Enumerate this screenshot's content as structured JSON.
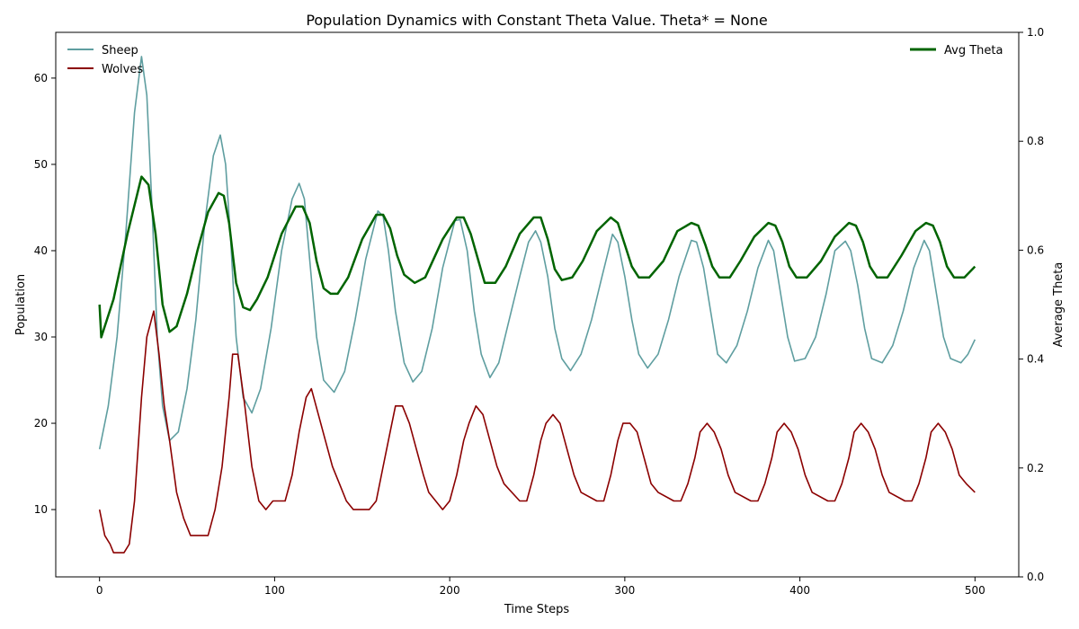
{
  "chart_data": {
    "type": "line",
    "title": "Population Dynamics with Constant Theta Value. Theta* = None",
    "xlabel": "Time Steps",
    "ylabel": "Population",
    "y2label": "Average Theta",
    "xlim": [
      -25,
      525
    ],
    "ylim": [
      2.2,
      65.3
    ],
    "y2lim": [
      0,
      1
    ],
    "xticks": [
      0,
      100,
      200,
      300,
      400,
      500
    ],
    "yticks": [
      10,
      20,
      30,
      40,
      50,
      60
    ],
    "y2ticks": [
      0.0,
      0.2,
      0.4,
      0.6,
      0.8,
      1.0
    ],
    "y2tick_labels": [
      "0.0",
      "0.2",
      "0.4",
      "0.6",
      "0.8",
      "1.0"
    ],
    "grid": false,
    "legend_left": "top-left",
    "legend_right": "top-right",
    "series": [
      {
        "name": "Sheep",
        "axis": "left",
        "color": "#5f9ea0",
        "x": [
          0,
          5,
          10,
          15,
          20,
          24,
          27,
          30,
          33,
          36,
          40,
          45,
          50,
          55,
          60,
          65,
          69,
          72,
          75,
          78,
          82,
          87,
          92,
          98,
          104,
          110,
          114,
          117,
          120,
          124,
          128,
          134,
          140,
          146,
          152,
          159,
          162,
          165,
          169,
          174,
          179,
          184,
          190,
          196,
          203,
          206,
          210,
          214,
          218,
          223,
          228,
          234,
          240,
          245,
          249,
          252,
          256,
          260,
          264,
          269,
          275,
          281,
          287,
          293,
          296,
          300,
          304,
          308,
          313,
          319,
          325,
          331,
          338,
          341,
          345,
          349,
          353,
          358,
          364,
          370,
          376,
          382,
          385,
          389,
          393,
          397,
          403,
          409,
          415,
          420,
          426,
          429,
          433,
          437,
          441,
          447,
          453,
          459,
          465,
          471,
          474,
          478,
          482,
          486,
          492,
          496,
          500
        ],
        "y": [
          17,
          22,
          30,
          42,
          56,
          62.5,
          58,
          45,
          30,
          22,
          18,
          19,
          24,
          32,
          43,
          51,
          53.4,
          50,
          41,
          30,
          23,
          21.2,
          24,
          31,
          40,
          46,
          47.8,
          46,
          39,
          30,
          25,
          23.6,
          26,
          32,
          39,
          44.6,
          44,
          40,
          33,
          27,
          24.8,
          26,
          31,
          38,
          43.5,
          43.6,
          40,
          33,
          28,
          25.3,
          27,
          32,
          37,
          41,
          42.3,
          41,
          37,
          31,
          27.5,
          26.1,
          28,
          32,
          37,
          41.9,
          41,
          37,
          32,
          28,
          26.4,
          28,
          32,
          37,
          41.2,
          41,
          38,
          33,
          28,
          27,
          29,
          33,
          38,
          41.2,
          40,
          35,
          30,
          27.2,
          27.5,
          30,
          35,
          40,
          41.1,
          40,
          36,
          31,
          27.5,
          27,
          29,
          33,
          38,
          41.2,
          40,
          35,
          30,
          27.5,
          27,
          28,
          29.7
        ]
      },
      {
        "name": "Wolves",
        "axis": "left",
        "color": "#8b0000",
        "x": [
          0,
          3,
          6,
          8,
          14,
          17,
          20,
          24,
          27,
          31,
          34,
          37,
          40,
          44,
          48,
          52,
          58,
          62,
          66,
          70,
          74,
          76,
          79,
          83,
          87,
          91,
          95,
          99,
          106,
          110,
          114,
          118,
          121,
          125,
          129,
          133,
          137,
          141,
          145,
          148,
          154,
          158,
          162,
          166,
          169,
          173,
          177,
          181,
          185,
          188,
          196,
          200,
          204,
          208,
          211,
          215,
          219,
          223,
          227,
          231,
          240,
          244,
          248,
          252,
          255,
          259,
          263,
          267,
          271,
          275,
          284,
          288,
          292,
          296,
          299,
          303,
          307,
          311,
          315,
          319,
          328,
          332,
          336,
          340,
          343,
          347,
          351,
          355,
          359,
          363,
          372,
          376,
          380,
          384,
          387,
          391,
          395,
          399,
          403,
          407,
          416,
          420,
          424,
          428,
          431,
          435,
          439,
          443,
          447,
          451,
          460,
          464,
          468,
          472,
          475,
          479,
          483,
          487,
          491,
          495,
          500
        ],
        "y": [
          10,
          7,
          6,
          5,
          5,
          6,
          11,
          23,
          30,
          33,
          28,
          22,
          18,
          12,
          9,
          7,
          7,
          7,
          10,
          15,
          23,
          28,
          28,
          22,
          15,
          11,
          10,
          11,
          11,
          14,
          19,
          23,
          24,
          21,
          18,
          15,
          13,
          11,
          10,
          10,
          10,
          11,
          15,
          19,
          22,
          22,
          20,
          17,
          14,
          12,
          10,
          11,
          14,
          18,
          20,
          22,
          21,
          18,
          15,
          13,
          11,
          11,
          14,
          18,
          20,
          21,
          20,
          17,
          14,
          12,
          11,
          11,
          14,
          18,
          20,
          20,
          19,
          16,
          13,
          12,
          11,
          11,
          13,
          16,
          19,
          20,
          19,
          17,
          14,
          12,
          11,
          11,
          13,
          16,
          19,
          20,
          19,
          17,
          14,
          12,
          11,
          11,
          13,
          16,
          19,
          20,
          19,
          17,
          14,
          12,
          11,
          11,
          13,
          16,
          19,
          20,
          19,
          17,
          14,
          13,
          12
        ]
      },
      {
        "name": "Avg Theta",
        "axis": "right",
        "color": "#006400",
        "x": [
          0,
          1,
          8,
          16,
          24,
          28,
          32,
          36,
          40,
          44,
          50,
          56,
          62,
          68,
          71,
          74,
          78,
          82,
          86,
          90,
          96,
          104,
          112,
          116,
          120,
          124,
          128,
          132,
          136,
          142,
          150,
          158,
          162,
          166,
          170,
          174,
          180,
          186,
          196,
          204,
          208,
          212,
          216,
          220,
          226,
          232,
          240,
          248,
          252,
          256,
          260,
          264,
          270,
          276,
          284,
          292,
          296,
          300,
          304,
          308,
          314,
          322,
          330,
          338,
          342,
          346,
          350,
          354,
          360,
          366,
          374,
          382,
          386,
          390,
          394,
          398,
          404,
          412,
          420,
          428,
          432,
          436,
          440,
          444,
          450,
          458,
          466,
          472,
          476,
          480,
          484,
          488,
          494,
          500
        ],
        "y": [
          0.5,
          0.44,
          0.51,
          0.63,
          0.735,
          0.72,
          0.63,
          0.5,
          0.45,
          0.46,
          0.52,
          0.6,
          0.67,
          0.705,
          0.7,
          0.65,
          0.54,
          0.495,
          0.49,
          0.51,
          0.55,
          0.63,
          0.68,
          0.68,
          0.65,
          0.58,
          0.53,
          0.52,
          0.52,
          0.55,
          0.62,
          0.665,
          0.665,
          0.64,
          0.59,
          0.555,
          0.54,
          0.55,
          0.62,
          0.66,
          0.66,
          0.63,
          0.585,
          0.54,
          0.54,
          0.57,
          0.63,
          0.66,
          0.66,
          0.62,
          0.565,
          0.545,
          0.55,
          0.58,
          0.635,
          0.66,
          0.65,
          0.61,
          0.57,
          0.55,
          0.55,
          0.58,
          0.635,
          0.65,
          0.645,
          0.61,
          0.57,
          0.55,
          0.55,
          0.58,
          0.625,
          0.65,
          0.645,
          0.615,
          0.57,
          0.55,
          0.55,
          0.58,
          0.625,
          0.65,
          0.645,
          0.615,
          0.57,
          0.55,
          0.55,
          0.59,
          0.635,
          0.65,
          0.645,
          0.615,
          0.57,
          0.55,
          0.55,
          0.57
        ]
      }
    ]
  }
}
